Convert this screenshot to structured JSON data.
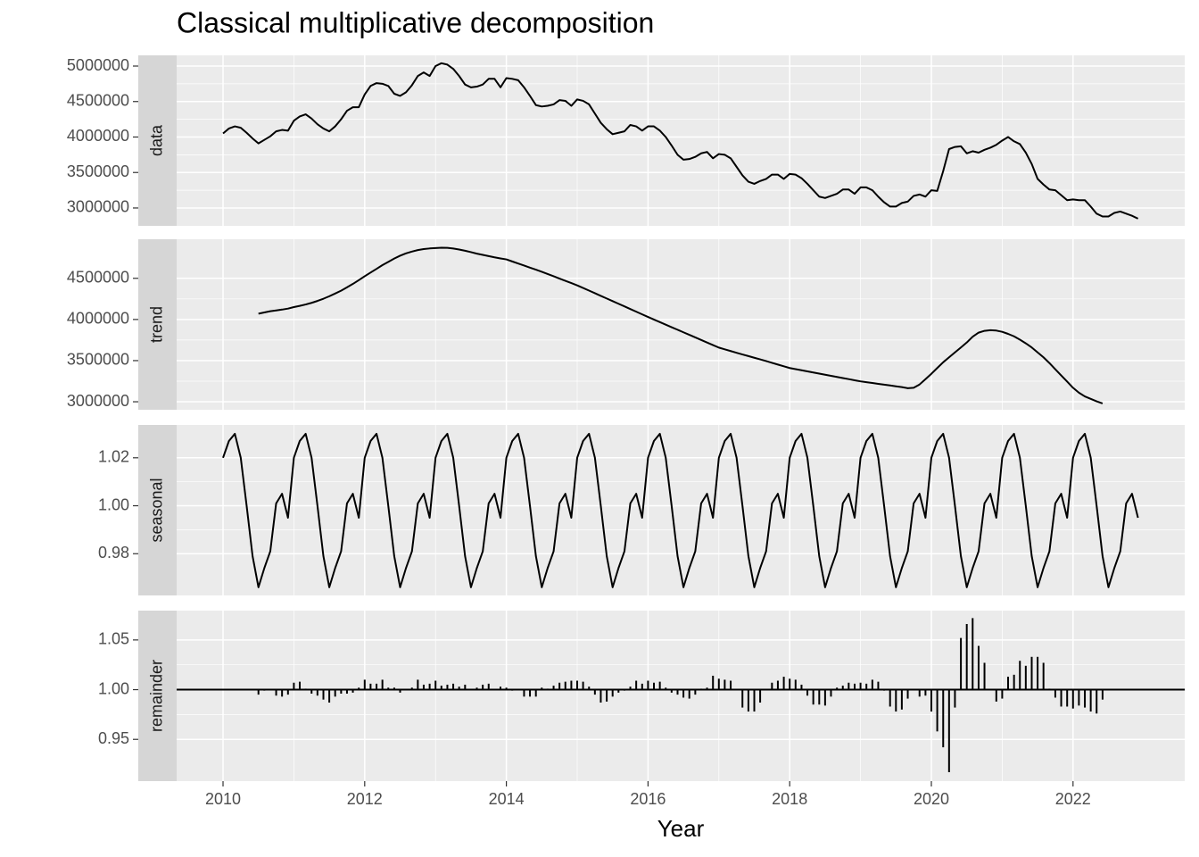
{
  "chart_data": {
    "type": "line",
    "title": "Classical multiplicative decomposition",
    "x_label": "Year",
    "xlim": [
      2009.345,
      2023.577
    ],
    "xticks": [
      2010,
      2012,
      2014,
      2016,
      2018,
      2020,
      2022
    ],
    "grid": true,
    "x": [
      2010,
      2010.083,
      2010.167,
      2010.25,
      2010.333,
      2010.417,
      2010.5,
      2010.583,
      2010.667,
      2010.75,
      2010.833,
      2010.917,
      2011,
      2011.083,
      2011.167,
      2011.25,
      2011.333,
      2011.417,
      2011.5,
      2011.583,
      2011.667,
      2011.75,
      2011.833,
      2011.917,
      2012,
      2012.083,
      2012.167,
      2012.25,
      2012.333,
      2012.417,
      2012.5,
      2012.583,
      2012.667,
      2012.75,
      2012.833,
      2012.917,
      2013,
      2013.083,
      2013.167,
      2013.25,
      2013.333,
      2013.417,
      2013.5,
      2013.583,
      2013.667,
      2013.75,
      2013.833,
      2013.917,
      2014,
      2014.083,
      2014.167,
      2014.25,
      2014.333,
      2014.417,
      2014.5,
      2014.583,
      2014.667,
      2014.75,
      2014.833,
      2014.917,
      2015,
      2015.083,
      2015.167,
      2015.25,
      2015.333,
      2015.417,
      2015.5,
      2015.583,
      2015.667,
      2015.75,
      2015.833,
      2015.917,
      2016,
      2016.083,
      2016.167,
      2016.25,
      2016.333,
      2016.417,
      2016.5,
      2016.583,
      2016.667,
      2016.75,
      2016.833,
      2016.917,
      2017,
      2017.083,
      2017.167,
      2017.25,
      2017.333,
      2017.417,
      2017.5,
      2017.583,
      2017.667,
      2017.75,
      2017.833,
      2017.917,
      2018,
      2018.083,
      2018.167,
      2018.25,
      2018.333,
      2018.417,
      2018.5,
      2018.583,
      2018.667,
      2018.75,
      2018.833,
      2018.917,
      2019,
      2019.083,
      2019.167,
      2019.25,
      2019.333,
      2019.417,
      2019.5,
      2019.583,
      2019.667,
      2019.75,
      2019.833,
      2019.917,
      2020,
      2020.083,
      2020.167,
      2020.25,
      2020.333,
      2020.417,
      2020.5,
      2020.583,
      2020.667,
      2020.75,
      2020.833,
      2020.917,
      2021,
      2021.083,
      2021.167,
      2021.25,
      2021.333,
      2021.417,
      2021.5,
      2021.583,
      2021.667,
      2021.75,
      2021.833,
      2021.917,
      2022,
      2022.083,
      2022.167,
      2022.25,
      2022.333,
      2022.417,
      2022.5,
      2022.583,
      2022.667,
      2022.75,
      2022.833,
      2022.917
    ],
    "panels": [
      {
        "name": "data",
        "type": "line",
        "color": "#000000",
        "ylim": [
          2748000,
          5151000
        ],
        "yticks": [
          3000000,
          3500000,
          4000000,
          4500000,
          5000000
        ],
        "values": [
          4050000,
          4120000,
          4150000,
          4130000,
          4060000,
          3980000,
          3910000,
          3960000,
          4010000,
          4080000,
          4100000,
          4090000,
          4230000,
          4290000,
          4320000,
          4260000,
          4180000,
          4120000,
          4080000,
          4150000,
          4250000,
          4370000,
          4420000,
          4420000,
          4600000,
          4720000,
          4760000,
          4750000,
          4720000,
          4610000,
          4580000,
          4630000,
          4730000,
          4860000,
          4910000,
          4860000,
          5000000,
          5040000,
          5020000,
          4960000,
          4860000,
          4740000,
          4700000,
          4710000,
          4740000,
          4820000,
          4820000,
          4700000,
          4830000,
          4820000,
          4800000,
          4700000,
          4580000,
          4450000,
          4430000,
          4440000,
          4460000,
          4520000,
          4510000,
          4440000,
          4530000,
          4510000,
          4460000,
          4330000,
          4200000,
          4110000,
          4040000,
          4060000,
          4080000,
          4170000,
          4150000,
          4090000,
          4150000,
          4150000,
          4090000,
          4000000,
          3880000,
          3750000,
          3680000,
          3690000,
          3720000,
          3770000,
          3790000,
          3700000,
          3760000,
          3750000,
          3700000,
          3580000,
          3460000,
          3370000,
          3340000,
          3380000,
          3410000,
          3470000,
          3470000,
          3410000,
          3480000,
          3470000,
          3420000,
          3340000,
          3250000,
          3160000,
          3140000,
          3170000,
          3200000,
          3260000,
          3260000,
          3200000,
          3290000,
          3290000,
          3250000,
          3160000,
          3080000,
          3020000,
          3020000,
          3070000,
          3090000,
          3170000,
          3190000,
          3160000,
          3250000,
          3240000,
          3520000,
          3830000,
          3860000,
          3870000,
          3770000,
          3800000,
          3780000,
          3820000,
          3850000,
          3890000,
          3950000,
          4000000,
          3940000,
          3900000,
          3780000,
          3620000,
          3410000,
          3330000,
          3260000,
          3250000,
          3180000,
          3110000,
          3120000,
          3110000,
          3110000,
          3020000,
          2920000,
          2880000,
          2880000,
          2930000,
          2950000,
          2920000,
          2890000,
          2850000
        ]
      },
      {
        "name": "trend",
        "type": "line",
        "color": "#000000",
        "ylim": [
          2902900,
          4974800
        ],
        "yticks": [
          3000000,
          3500000,
          4000000,
          4500000
        ],
        "values": [
          null,
          null,
          null,
          null,
          null,
          null,
          4070000,
          4085000,
          4100000,
          4110000,
          4120000,
          4132000,
          4150000,
          4165000,
          4182000,
          4202000,
          4225000,
          4252000,
          4282000,
          4315000,
          4350000,
          4390000,
          4432000,
          4478000,
          4525000,
          4570000,
          4615000,
          4660000,
          4700000,
          4740000,
          4775000,
          4803000,
          4825000,
          4843000,
          4855000,
          4863000,
          4868000,
          4872000,
          4870000,
          4862000,
          4850000,
          4835000,
          4818000,
          4800000,
          4785000,
          4770000,
          4755000,
          4742000,
          4730000,
          4705000,
          4680000,
          4655000,
          4630000,
          4605000,
          4580000,
          4553000,
          4525000,
          4497000,
          4470000,
          4442000,
          4414000,
          4383000,
          4351000,
          4319000,
          4287000,
          4255000,
          4223000,
          4191000,
          4159000,
          4127000,
          4095000,
          4062000,
          4030000,
          3999000,
          3968000,
          3937000,
          3906000,
          3875000,
          3844000,
          3813000,
          3782000,
          3751000,
          3720000,
          3689000,
          3658000,
          3637000,
          3616000,
          3595000,
          3575000,
          3555000,
          3535000,
          3515000,
          3495000,
          3473000,
          3452000,
          3431000,
          3410000,
          3396000,
          3383000,
          3369000,
          3356000,
          3342000,
          3329000,
          3315000,
          3302000,
          3288000,
          3275000,
          3261000,
          3248000,
          3238000,
          3228000,
          3218000,
          3208000,
          3198000,
          3188000,
          3178000,
          3165000,
          3170000,
          3210000,
          3275000,
          3340000,
          3410000,
          3480000,
          3540000,
          3600000,
          3660000,
          3720000,
          3790000,
          3840000,
          3862000,
          3870000,
          3865000,
          3850000,
          3825000,
          3795000,
          3755000,
          3710000,
          3660000,
          3600000,
          3540000,
          3470000,
          3395000,
          3320000,
          3245000,
          3170000,
          3110000,
          3065000,
          3035000,
          3005000,
          2980000,
          null,
          null,
          null,
          null,
          null,
          null
        ]
      },
      {
        "name": "seasonal",
        "type": "line",
        "color": "#000000",
        "ylim": [
          0.9626,
          1.0337
        ],
        "yticks": [
          0.98,
          {
            "value": 1,
            "label": "1.00"
          },
          1.02
        ],
        "values": [
          1.02,
          1.027,
          1.03,
          1.02,
          1,
          0.979,
          0.966,
          0.974,
          0.981,
          1.001,
          1.005,
          0.995,
          1.02,
          1.027,
          1.03,
          1.02,
          1,
          0.979,
          0.966,
          0.974,
          0.981,
          1.001,
          1.005,
          0.995,
          1.02,
          1.027,
          1.03,
          1.02,
          1,
          0.979,
          0.966,
          0.974,
          0.981,
          1.001,
          1.005,
          0.995,
          1.02,
          1.027,
          1.03,
          1.02,
          1,
          0.979,
          0.966,
          0.974,
          0.981,
          1.001,
          1.005,
          0.995,
          1.02,
          1.027,
          1.03,
          1.02,
          1,
          0.979,
          0.966,
          0.974,
          0.981,
          1.001,
          1.005,
          0.995,
          1.02,
          1.027,
          1.03,
          1.02,
          1,
          0.979,
          0.966,
          0.974,
          0.981,
          1.001,
          1.005,
          0.995,
          1.02,
          1.027,
          1.03,
          1.02,
          1,
          0.979,
          0.966,
          0.974,
          0.981,
          1.001,
          1.005,
          0.995,
          1.02,
          1.027,
          1.03,
          1.02,
          1,
          0.979,
          0.966,
          0.974,
          0.981,
          1.001,
          1.005,
          0.995,
          1.02,
          1.027,
          1.03,
          1.02,
          1,
          0.979,
          0.966,
          0.974,
          0.981,
          1.001,
          1.005,
          0.995,
          1.02,
          1.027,
          1.03,
          1.02,
          1,
          0.979,
          0.966,
          0.974,
          0.981,
          1.001,
          1.005,
          0.995,
          1.02,
          1.027,
          1.03,
          1.02,
          1,
          0.979,
          0.966,
          0.974,
          0.981,
          1.001,
          1.005,
          0.995,
          1.02,
          1.027,
          1.03,
          1.02,
          1,
          0.979,
          0.966,
          0.974,
          0.981,
          1.001,
          1.005,
          0.995,
          1.02,
          1.027,
          1.03,
          1.02,
          1,
          0.979,
          0.966,
          0.974,
          0.981,
          1.001,
          1.005,
          0.995
        ]
      },
      {
        "name": "remainder",
        "type": "bar",
        "color": "#000000",
        "baseline": 1,
        "ylim": [
          0.908,
          1.0795
        ],
        "yticks": [
          0.95,
          {
            "value": 1,
            "label": "1.00"
          },
          1.05
        ],
        "values": [
          null,
          null,
          null,
          null,
          null,
          null,
          0.995,
          0.999,
          1,
          0.994,
          0.993,
          0.995,
          1.007,
          1.008,
          1.001,
          0.996,
          0.994,
          0.99,
          0.987,
          0.993,
          0.996,
          0.996,
          0.997,
          1.002,
          1.01,
          1.006,
          1.006,
          1.01,
          1.002,
          1.002,
          0.997,
          1,
          1.002,
          1.01,
          1.005,
          1.006,
          1.009,
          1.004,
          1.005,
          1.006,
          1.003,
          1.005,
          1,
          1.002,
          1.005,
          1.006,
          1,
          1.003,
          1.002,
          0.999,
          1,
          0.993,
          0.993,
          0.993,
          1.002,
          1.001,
          1.004,
          1.007,
          1.008,
          1.009,
          1.009,
          1.008,
          1.003,
          0.995,
          0.987,
          0.988,
          0.993,
          0.997,
          0.999,
          1.003,
          1.009,
          1.006,
          1.009,
          1.007,
          1.008,
          1.002,
          0.997,
          0.995,
          0.992,
          0.991,
          0.995,
          1.001,
          1.002,
          1.014,
          1.011,
          1.01,
          1.009,
          1,
          0.982,
          0.978,
          0.978,
          0.987,
          1,
          1.007,
          1.009,
          1.013,
          1.011,
          1.01,
          1.005,
          0.994,
          0.985,
          0.985,
          0.984,
          0.993,
          1.002,
          1.004,
          1.007,
          1.006,
          1.007,
          1.006,
          1.01,
          1.008,
          0.999,
          0.983,
          0.978,
          0.98,
          0.991,
          1,
          0.993,
          0.994,
          0.978,
          0.958,
          0.942,
          0.917,
          0.982,
          1.052,
          1.066,
          1.072,
          1.044,
          1.027,
          1,
          0.988,
          0.991,
          1.013,
          1.015,
          1.029,
          1.024,
          1.033,
          1.033,
          1.027,
          1.001,
          0.992,
          0.983,
          0.983,
          0.981,
          0.984,
          0.982,
          0.978,
          0.976,
          0.99,
          null,
          null,
          null,
          null,
          null,
          null
        ]
      }
    ]
  }
}
